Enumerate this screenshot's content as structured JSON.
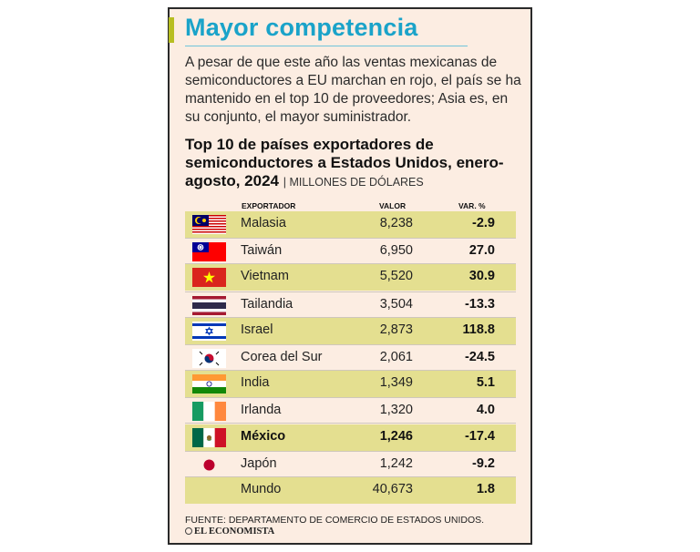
{
  "header": {
    "title": "Mayor competencia",
    "intro": "A pesar de que este año las ventas mexicanas de semiconductores a EU marchan en rojo, el país se ha mantenido en el top 10 de proveedores; Asia es, en su conjunto, el mayor suministrador."
  },
  "chart_data": {
    "type": "table",
    "title": "Top 10 de países exportadores de semiconductores a Estados Unidos, enero-agosto, 2024",
    "unit": "MILLONES DE DÓLARES",
    "columns": [
      "EXPORTADOR",
      "VALOR",
      "VAR. %"
    ],
    "rows": [
      {
        "country": "Malasia",
        "value": "8,238",
        "var": "-2.9",
        "flag": "malaysia-flag"
      },
      {
        "country": "Taiwán",
        "value": "6,950",
        "var": "27.0",
        "flag": "taiwan-flag"
      },
      {
        "country": "Vietnam",
        "value": "5,520",
        "var": "30.9",
        "flag": "vietnam-flag"
      },
      {
        "country": "Tailandia",
        "value": "3,504",
        "var": "-13.3",
        "flag": "thailand-flag"
      },
      {
        "country": "Israel",
        "value": "2,873",
        "var": "118.8",
        "flag": "israel-flag"
      },
      {
        "country": "Corea del Sur",
        "value": "2,061",
        "var": "-24.5",
        "flag": "south-korea-flag"
      },
      {
        "country": "India",
        "value": "1,349",
        "var": "5.1",
        "flag": "india-flag"
      },
      {
        "country": "Irlanda",
        "value": "1,320",
        "var": "4.0",
        "flag": "ireland-flag"
      },
      {
        "country": "México",
        "value": "1,246",
        "var": "-17.4",
        "flag": "mexico-flag"
      },
      {
        "country": "Japón",
        "value": "1,242",
        "var": "-9.2",
        "flag": "japan-flag"
      },
      {
        "country": "Mundo",
        "value": "40,673",
        "var": "1.8",
        "flag": ""
      }
    ],
    "highlight": "México"
  },
  "footer": {
    "source": "FUENTE: DEPARTAMENTO DE COMERCIO DE ESTADOS UNIDOS.",
    "brand": "EL ECONOMISTA"
  },
  "colors": {
    "accent": "#1aa3c9",
    "stripe": "#e4df90",
    "card_bg": "#fcede2"
  }
}
